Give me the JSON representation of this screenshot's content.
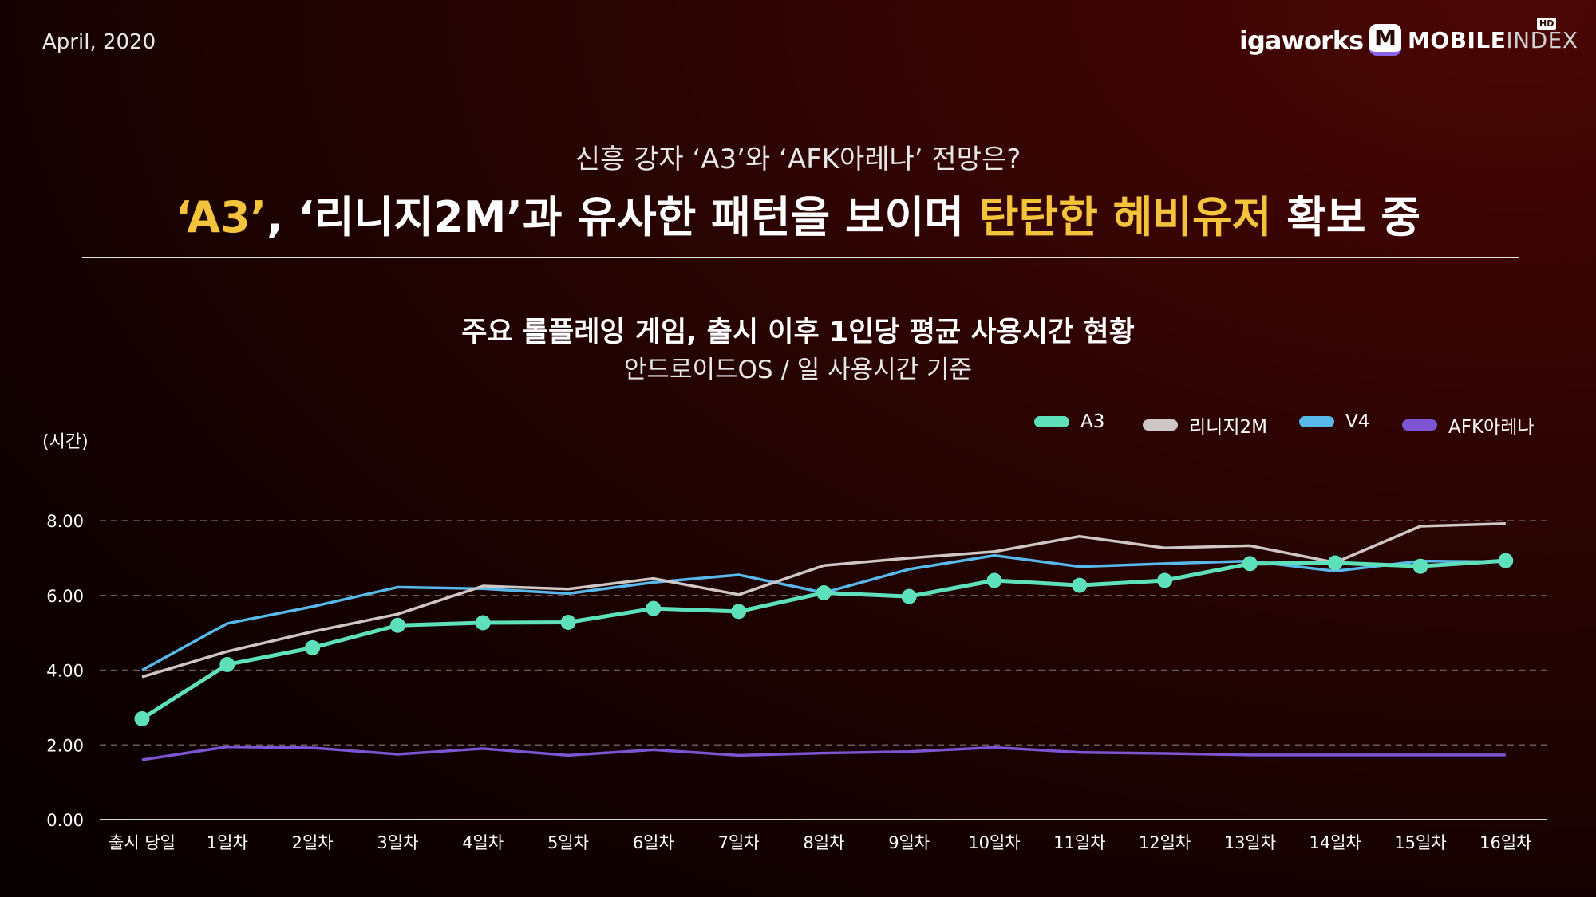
{
  "header": {
    "date": "April, 2020",
    "logo_igaworks": "igaworks",
    "logo_mi_letter": "M",
    "logo_mi_bold": "MOBILE",
    "logo_mi_light": "INDEX",
    "logo_hd": "HD"
  },
  "headline": {
    "subtitle": "신흥 강자 ‘A3’와 ‘AFK아레나’ 전망은?",
    "title_part1": "‘A3’",
    "title_part2": ", ‘리니지2M’과 유사한 패턴을 보이며 ",
    "title_part3": "탄탄한 헤비유저",
    "title_part4": " 확보 중"
  },
  "chart_header": {
    "title": "주요 롤플레잉 게임, 출시 이후 1인당 평균 사용시간 현황",
    "subtitle": "안드로이드OS / 일 사용시간 기준"
  },
  "colors": {
    "A3": "#5ee0bb",
    "lineage": "#cfc7c5",
    "V4": "#58b8ea",
    "AFK": "#7b55d2",
    "highlight": "#f4c33c"
  },
  "chart_data": {
    "type": "line",
    "ylabel": "(시간)",
    "ylim": [
      0,
      8
    ],
    "yticks": [
      "0.00",
      "2.00",
      "4.00",
      "6.00",
      "8.00"
    ],
    "grid": "horizontal-dashed",
    "legend_position": "top-right",
    "categories": [
      "출시 당일",
      "1일차",
      "2일차",
      "3일차",
      "4일차",
      "5일차",
      "6일차",
      "7일차",
      "8일차",
      "9일차",
      "10일차",
      "11일차",
      "12일차",
      "13일차",
      "14일차",
      "15일차",
      "16일차"
    ],
    "series": [
      {
        "name": "A3",
        "markers": true,
        "values": [
          2.7,
          4.15,
          4.6,
          5.2,
          5.27,
          5.28,
          5.65,
          5.57,
          6.07,
          5.97,
          6.4,
          6.27,
          6.4,
          6.85,
          6.87,
          6.78,
          6.93
        ]
      },
      {
        "name": "리니지2M",
        "markers": false,
        "values": [
          3.82,
          4.5,
          5.03,
          5.5,
          6.25,
          6.17,
          6.45,
          6.02,
          6.8,
          7.0,
          7.17,
          7.58,
          7.27,
          7.33,
          6.88,
          7.85,
          7.92
        ]
      },
      {
        "name": "V4",
        "markers": false,
        "values": [
          4.0,
          5.25,
          5.7,
          6.22,
          6.18,
          6.05,
          6.35,
          6.55,
          6.07,
          6.7,
          7.07,
          6.77,
          6.85,
          6.92,
          6.65,
          6.92,
          6.9
        ]
      },
      {
        "name": "AFK아레나",
        "markers": false,
        "values": [
          1.6,
          1.95,
          1.92,
          1.75,
          1.9,
          1.72,
          1.87,
          1.72,
          1.78,
          1.82,
          1.93,
          1.8,
          1.77,
          1.73,
          1.73,
          1.73,
          1.73
        ]
      }
    ]
  }
}
